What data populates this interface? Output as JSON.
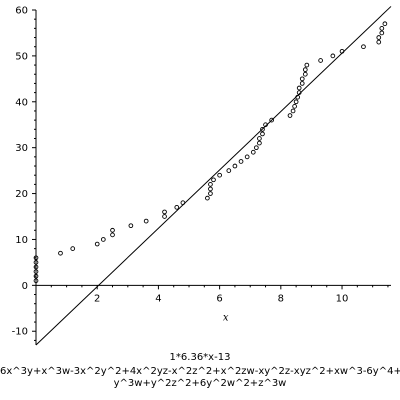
{
  "chart_data": {
    "type": "scatter",
    "xlabel": "x",
    "ylabel": "",
    "xlim": [
      0,
      11.6
    ],
    "ylim": [
      -13,
      60
    ],
    "x_ticks": [
      2,
      4,
      6,
      8,
      10
    ],
    "y_ticks": [
      -10,
      0,
      10,
      20,
      30,
      40,
      50,
      60
    ],
    "line": {
      "label": "1*6.36*x-13",
      "slope": 6.36,
      "intercept": -13,
      "x_range": [
        0,
        11.6
      ]
    },
    "expression": [
      "6x^3y+x^3w-3x^2y^2+4x^2yz-x^2z^2+x^2zw-xy^2z-xyz^2+xw^3-6y^4+",
      "y^3w+y^2z^2+6y^2w^2+z^3w"
    ],
    "points": [
      [
        0,
        1
      ],
      [
        0,
        2
      ],
      [
        0,
        3
      ],
      [
        0,
        4
      ],
      [
        0,
        5
      ],
      [
        0,
        6
      ],
      [
        0.8,
        7
      ],
      [
        1.2,
        8
      ],
      [
        2.0,
        9
      ],
      [
        2.2,
        10
      ],
      [
        2.5,
        11
      ],
      [
        2.5,
        12
      ],
      [
        3.1,
        13
      ],
      [
        3.6,
        14
      ],
      [
        4.2,
        15
      ],
      [
        4.2,
        16
      ],
      [
        4.6,
        17
      ],
      [
        4.8,
        18
      ],
      [
        5.6,
        19
      ],
      [
        5.7,
        20
      ],
      [
        5.7,
        21
      ],
      [
        5.7,
        22
      ],
      [
        5.8,
        23
      ],
      [
        6.0,
        24
      ],
      [
        6.3,
        25
      ],
      [
        6.5,
        26
      ],
      [
        6.7,
        27
      ],
      [
        6.9,
        28
      ],
      [
        7.1,
        29
      ],
      [
        7.2,
        30
      ],
      [
        7.3,
        31
      ],
      [
        7.3,
        32
      ],
      [
        7.4,
        33
      ],
      [
        7.4,
        34
      ],
      [
        7.5,
        35
      ],
      [
        7.7,
        36
      ],
      [
        8.3,
        37
      ],
      [
        8.4,
        38
      ],
      [
        8.45,
        39
      ],
      [
        8.5,
        40
      ],
      [
        8.55,
        41
      ],
      [
        8.6,
        42
      ],
      [
        8.6,
        43
      ],
      [
        8.7,
        44
      ],
      [
        8.7,
        45
      ],
      [
        8.8,
        46
      ],
      [
        8.8,
        47
      ],
      [
        8.85,
        48
      ],
      [
        9.3,
        49
      ],
      [
        9.7,
        50
      ],
      [
        10.0,
        51
      ],
      [
        10.7,
        52
      ],
      [
        11.2,
        53
      ],
      [
        11.2,
        54
      ],
      [
        11.3,
        55
      ],
      [
        11.3,
        56
      ],
      [
        11.4,
        57
      ]
    ]
  }
}
